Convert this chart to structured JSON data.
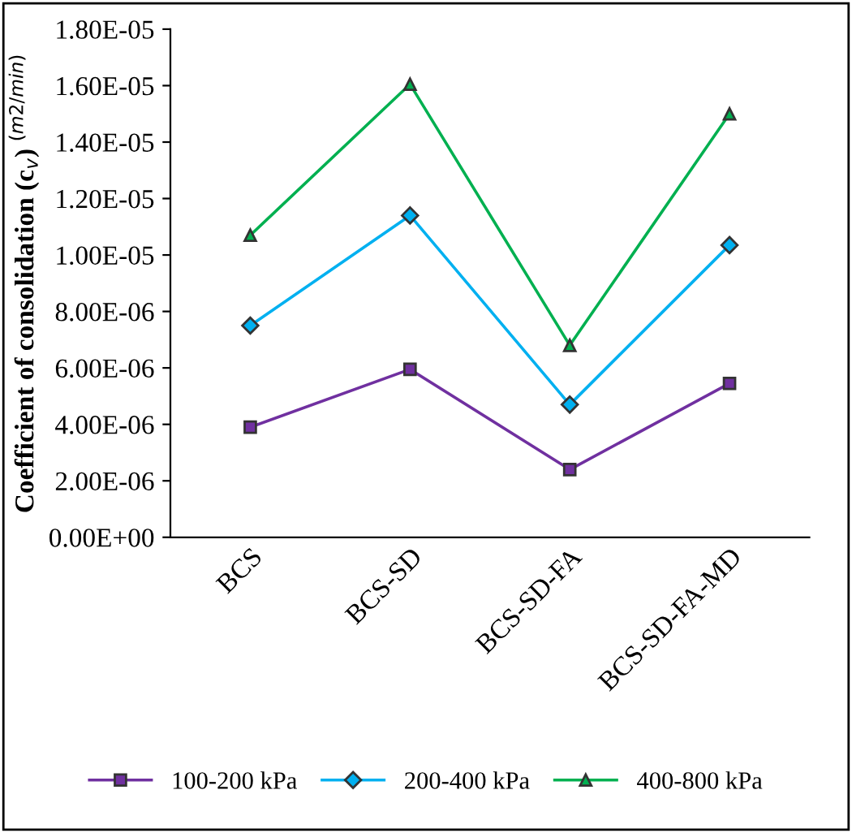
{
  "chart_data": {
    "type": "line",
    "ylabel": "Coefficient of consolidation (c$_{v}$) $^{(m2/min)}$",
    "categories": [
      "BCS",
      "BCS-SD",
      "BCS-SD-FA",
      "BCS-SD-FA-MD"
    ],
    "series": [
      {
        "name": "100-200 kPa",
        "color": "#7030a0",
        "marker": "square",
        "values": [
          3.9e-06,
          5.95e-06,
          2.4e-06,
          5.45e-06
        ]
      },
      {
        "name": "200-400 kPa",
        "color": "#00b0f0",
        "marker": "diamond",
        "values": [
          7.5e-06,
          1.14e-05,
          4.7e-06,
          1.035e-05
        ]
      },
      {
        "name": "400-800 kPa",
        "color": "#00b050",
        "marker": "triangle",
        "values": [
          1.07e-05,
          1.605e-05,
          6.8e-06,
          1.5e-05
        ]
      }
    ],
    "ylim": [
      0,
      1.8e-05
    ],
    "yticks": [
      {
        "value": 0,
        "label": "0.00E+00"
      },
      {
        "value": 2e-06,
        "label": "2.00E-06"
      },
      {
        "value": 4e-06,
        "label": "4.00E-06"
      },
      {
        "value": 6e-06,
        "label": "6.00E-06"
      },
      {
        "value": 8e-06,
        "label": "8.00E-06"
      },
      {
        "value": 1e-05,
        "label": "1.00E-05"
      },
      {
        "value": 1.2e-05,
        "label": "1.20E-05"
      },
      {
        "value": 1.4e-05,
        "label": "1.40E-05"
      },
      {
        "value": 1.6e-05,
        "label": "1.60E-05"
      },
      {
        "value": 1.8e-05,
        "label": "1.80E-05"
      }
    ],
    "grid": false,
    "legend": "bottom"
  }
}
